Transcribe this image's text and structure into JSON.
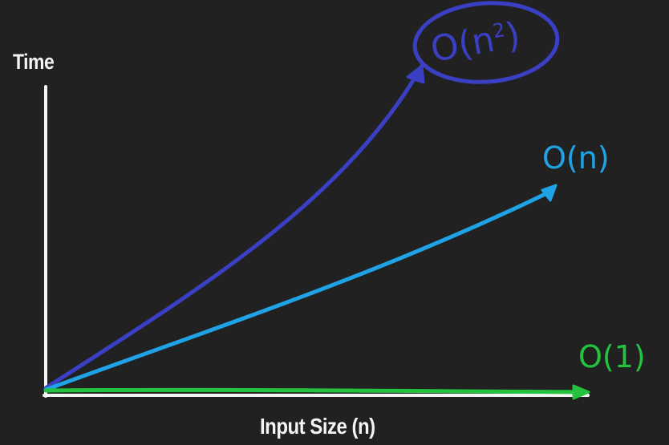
{
  "chart_data": {
    "type": "line",
    "title": "",
    "xlabel": "Input Size (n)",
    "ylabel": "Time",
    "xticks": [],
    "yticks": [],
    "grid": false,
    "series": [
      {
        "name": "O(n²)",
        "label_text": "O(n",
        "label_sup": "2",
        "label_close": ")",
        "shape": "quadratic",
        "color": "#3b3fc4",
        "circled": true
      },
      {
        "name": "O(n)",
        "label_text": "O(n)",
        "shape": "linear",
        "color": "#1fa3e6",
        "circled": false
      },
      {
        "name": "O(1)",
        "label_text": "O(1)",
        "shape": "constant",
        "color": "#24c23e",
        "circled": false
      }
    ]
  },
  "colors": {
    "background": "#212121",
    "axes": "#f4f4f4"
  }
}
